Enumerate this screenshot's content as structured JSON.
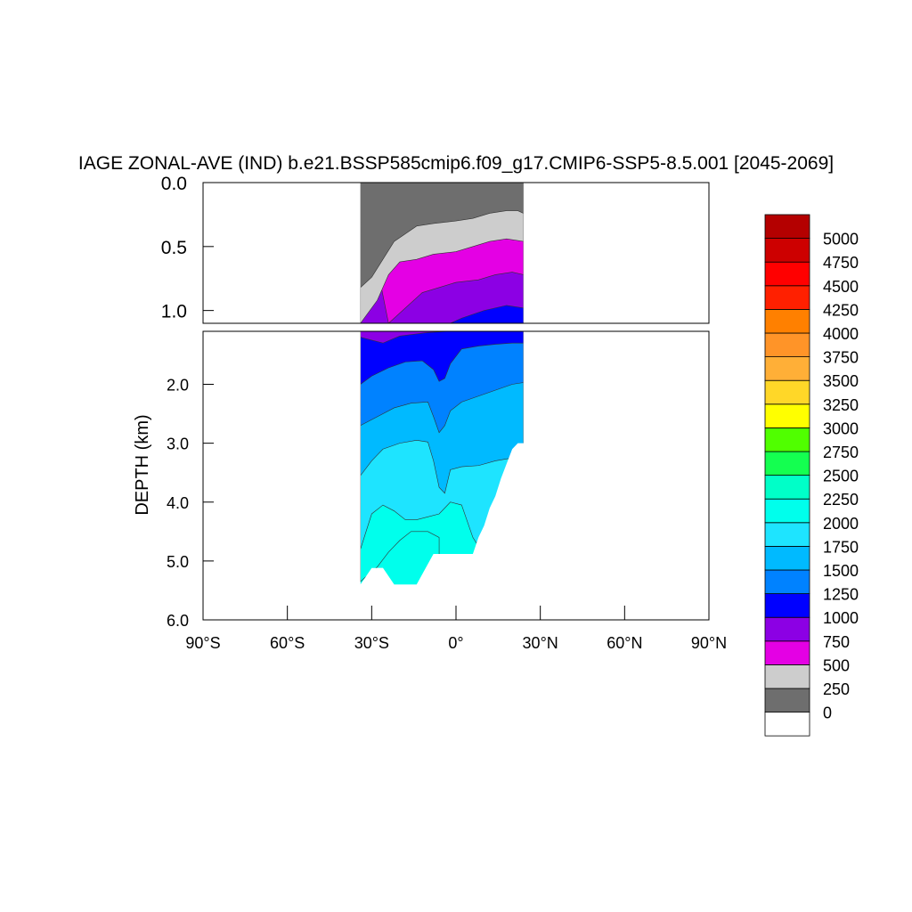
{
  "chart_data": {
    "type": "heatmap",
    "title": "IAGE ZONAL-AVE (IND) b.e21.BSSP585cmip6.f09_g17.CMIP6-SSP5-8.5.001 [2045-2069]",
    "ylabel": "DEPTH (km)",
    "xlabel": "",
    "x_ticks": [
      "90°S",
      "60°S",
      "30°S",
      "0°",
      "30°N",
      "60°N",
      "90°N"
    ],
    "x_tick_values": [
      -90,
      -60,
      -30,
      0,
      30,
      60,
      90
    ],
    "xlim": [
      -90,
      90
    ],
    "upper_panel": {
      "ylim": [
        0,
        1.1
      ],
      "ticks": [
        "0.0",
        "0.5",
        "1.0"
      ],
      "tick_values": [
        0,
        0.5,
        1.0
      ]
    },
    "lower_panel": {
      "ylim": [
        1.1,
        6.0
      ],
      "ticks": [
        "2.0",
        "3.0",
        "4.0",
        "5.0",
        "6.0"
      ],
      "tick_values": [
        2,
        3,
        4,
        5,
        6
      ]
    },
    "legend_placement": "right",
    "colorbar": {
      "labels": [
        "0",
        "250",
        "500",
        "750",
        "1000",
        "1250",
        "1500",
        "1750",
        "2000",
        "2250",
        "2500",
        "2750",
        "3000",
        "3250",
        "3500",
        "3750",
        "4000",
        "4250",
        "4500",
        "4750",
        "5000"
      ],
      "colors": [
        "#ffffff",
        "#6e6e6e",
        "#cdcdcd",
        "#e400e4",
        "#8c00e4",
        "#0000ff",
        "#0082ff",
        "#00baff",
        "#1ee4ff",
        "#00ffec",
        "#00ffc8",
        "#14ff50",
        "#50ff00",
        "#ffff00",
        "#ffd728",
        "#ffaf37",
        "#ff9428",
        "#ff8000",
        "#ff2000",
        "#ff0000",
        "#cd0000",
        "#b40000"
      ]
    },
    "contours": [
      {
        "level": 250,
        "color": "#6e6e6e",
        "boundary": [
          [
            -34,
            0.82
          ],
          [
            -30,
            0.74
          ],
          [
            -26,
            0.6
          ],
          [
            -22,
            0.46
          ],
          [
            -18,
            0.4
          ],
          [
            -14,
            0.34
          ],
          [
            -8,
            0.32
          ],
          [
            0,
            0.3
          ],
          [
            6,
            0.28
          ],
          [
            12,
            0.24
          ],
          [
            18,
            0.22
          ],
          [
            22,
            0.22
          ],
          [
            24,
            0.24
          ]
        ]
      },
      {
        "level": 500,
        "color": "#cdcdcd",
        "boundary": [
          [
            -34,
            1.1
          ],
          [
            -28,
            0.92
          ],
          [
            -24,
            0.72
          ],
          [
            -20,
            0.62
          ],
          [
            -14,
            0.6
          ],
          [
            -8,
            0.56
          ],
          [
            0,
            0.54
          ],
          [
            6,
            0.5
          ],
          [
            12,
            0.46
          ],
          [
            18,
            0.44
          ],
          [
            24,
            0.46
          ]
        ]
      },
      {
        "level": 750,
        "color": "#e400e4",
        "boundary": [
          [
            -24,
            1.1
          ],
          [
            -18,
            0.98
          ],
          [
            -12,
            0.86
          ],
          [
            -6,
            0.82
          ],
          [
            0,
            0.78
          ],
          [
            8,
            0.76
          ],
          [
            14,
            0.72
          ],
          [
            20,
            0.7
          ],
          [
            24,
            0.72
          ]
        ]
      },
      {
        "level": 1000,
        "color": "#8c00e4",
        "boundary": [
          [
            -34,
            1.2
          ],
          [
            -26,
            1.3
          ],
          [
            -20,
            1.18
          ],
          [
            -10,
            1.12
          ],
          [
            -2,
            1.1
          ],
          [
            2,
            1.06
          ],
          [
            10,
            1.0
          ],
          [
            18,
            0.96
          ],
          [
            24,
            0.98
          ]
        ]
      },
      {
        "level": 1250,
        "color": "#0000ff",
        "boundary": [
          [
            -34,
            2.0
          ],
          [
            -30,
            1.86
          ],
          [
            -24,
            1.72
          ],
          [
            -18,
            1.62
          ],
          [
            -12,
            1.6
          ],
          [
            -8,
            1.75
          ],
          [
            -6,
            1.95
          ],
          [
            -4,
            1.9
          ],
          [
            -2,
            1.65
          ],
          [
            2,
            1.4
          ],
          [
            8,
            1.35
          ],
          [
            14,
            1.32
          ],
          [
            20,
            1.3
          ],
          [
            24,
            1.3
          ]
        ]
      },
      {
        "level": 1500,
        "color": "#0082ff",
        "boundary": [
          [
            -34,
            2.7
          ],
          [
            -28,
            2.55
          ],
          [
            -22,
            2.4
          ],
          [
            -16,
            2.32
          ],
          [
            -10,
            2.3
          ],
          [
            -8,
            2.55
          ],
          [
            -6,
            2.82
          ],
          [
            -4,
            2.7
          ],
          [
            -2,
            2.45
          ],
          [
            2,
            2.3
          ],
          [
            8,
            2.2
          ],
          [
            14,
            2.1
          ],
          [
            20,
            2.0
          ],
          [
            24,
            1.97
          ]
        ]
      },
      {
        "level": 1750,
        "color": "#00baff",
        "boundary": [
          [
            -34,
            3.55
          ],
          [
            -30,
            3.3
          ],
          [
            -26,
            3.1
          ],
          [
            -20,
            3.0
          ],
          [
            -14,
            2.95
          ],
          [
            -10,
            2.98
          ],
          [
            -8,
            3.3
          ],
          [
            -6,
            3.75
          ],
          [
            -4,
            3.85
          ],
          [
            -2,
            3.45
          ],
          [
            2,
            3.4
          ],
          [
            8,
            3.38
          ],
          [
            14,
            3.3
          ],
          [
            20,
            3.25
          ],
          [
            24,
            3.2
          ]
        ]
      },
      {
        "level": 2000,
        "color": "#1ee4ff",
        "boundary": [
          [
            -34,
            4.8
          ],
          [
            -30,
            4.2
          ],
          [
            -26,
            4.05
          ],
          [
            -22,
            4.15
          ],
          [
            -18,
            4.3
          ],
          [
            -14,
            4.3
          ],
          [
            -10,
            4.25
          ],
          [
            -6,
            4.2
          ],
          [
            -2,
            4.0
          ],
          [
            2,
            4.05
          ],
          [
            6,
            4.6
          ],
          [
            8,
            4.75
          ]
        ]
      },
      {
        "level": 2250,
        "color": "#00ffec",
        "boundary": [
          [
            -34,
            5.35
          ],
          [
            -28,
            5.1
          ],
          [
            -24,
            4.85
          ],
          [
            -20,
            4.65
          ],
          [
            -16,
            4.5
          ],
          [
            -10,
            4.5
          ],
          [
            -6,
            4.6
          ],
          [
            -6,
            5.1
          ]
        ]
      }
    ]
  }
}
